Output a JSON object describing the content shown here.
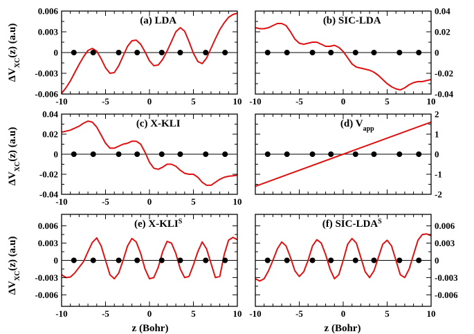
{
  "colors": {
    "curve": "#e01010",
    "axis": "#000000",
    "atoms": "#000000"
  },
  "x_axis_label": "z (Bohr)",
  "y_axis_label": "ΔV",
  "y_axis_sub": "XC",
  "y_axis_suffix": "(z) (a.u)",
  "chart_data": [
    {
      "type": "line",
      "title": "(a) LDA",
      "title_sup": "",
      "title_sub": "",
      "xlabel": "",
      "ylabel": "ΔV_XC(z) (a.u)",
      "xlim": [
        -10,
        10
      ],
      "ylim": [
        -0.006,
        0.006
      ],
      "yticks": [
        -0.006,
        -0.003,
        0,
        0.003,
        0.006
      ],
      "ytick_labels": [
        "-0.006",
        "-0.003",
        "0",
        "0.003",
        "0.006"
      ],
      "y_axis_side": "left",
      "xticks": [
        -10,
        -5,
        0,
        5,
        10
      ],
      "xtick_labels": [
        "-10",
        "-5",
        "0",
        "5",
        "10"
      ],
      "show_xtick_labels": true,
      "atoms_x": [
        -8.6,
        -6.4,
        -3.5,
        -1.4,
        1.4,
        3.5,
        6.4,
        8.6
      ],
      "x": [
        -10,
        -9.5,
        -9,
        -8.5,
        -8,
        -7.5,
        -7,
        -6.5,
        -6,
        -5.5,
        -5,
        -4.5,
        -4,
        -3.5,
        -3,
        -2.5,
        -2,
        -1.5,
        -1,
        -0.5,
        0,
        0.5,
        1,
        1.5,
        2,
        2.5,
        3,
        3.5,
        4,
        4.5,
        5,
        5.5,
        6,
        6.5,
        7,
        7.5,
        8,
        8.5,
        9,
        9.5,
        10
      ],
      "y": [
        -0.0059,
        -0.0051,
        -0.0041,
        -0.0029,
        -0.0017,
        -0.0006,
        0.0003,
        0.0006,
        0.0002,
        -0.0009,
        -0.0022,
        -0.003,
        -0.0029,
        -0.0019,
        -0.0005,
        0.0009,
        0.0017,
        0.0018,
        0.0012,
        0.0001,
        -0.0012,
        -0.0019,
        -0.0018,
        -0.001,
        0.0002,
        0.0016,
        0.003,
        0.0036,
        0.0031,
        0.0016,
        -0.0001,
        -0.0013,
        -0.0016,
        -0.0008,
        0.0006,
        0.002,
        0.0033,
        0.0043,
        0.0051,
        0.0055,
        0.0057
      ]
    },
    {
      "type": "line",
      "title": "(b) SIC-LDA",
      "title_sup": "",
      "title_sub": "",
      "xlabel": "",
      "ylabel": "",
      "xlim": [
        -10,
        10
      ],
      "ylim": [
        -0.04,
        0.04
      ],
      "yticks": [
        -0.04,
        -0.02,
        0,
        0.02,
        0.04
      ],
      "ytick_labels": [
        "-0.04",
        "-0.02",
        "0",
        "0.02",
        "0.04"
      ],
      "y_axis_side": "right",
      "xticks": [
        -10,
        -5,
        0,
        5,
        10
      ],
      "xtick_labels": [
        "-10",
        "-5",
        "0",
        "5",
        "10"
      ],
      "show_xtick_labels": true,
      "atoms_x": [
        -8.6,
        -6.4,
        -3.5,
        -1.4,
        1.4,
        3.5,
        6.4,
        8.6
      ],
      "x": [
        -10,
        -9.5,
        -9,
        -8.5,
        -8,
        -7.5,
        -7,
        -6.5,
        -6,
        -5.5,
        -5,
        -4.5,
        -4,
        -3.5,
        -3,
        -2.5,
        -2,
        -1.5,
        -1,
        -0.5,
        0,
        0.5,
        1,
        1.5,
        2,
        2.5,
        3,
        3.5,
        4,
        4.5,
        5,
        5.5,
        6,
        6.5,
        7,
        7.5,
        8,
        8.5,
        9,
        9.5,
        10
      ],
      "y": [
        0.024,
        0.023,
        0.023,
        0.024,
        0.026,
        0.028,
        0.028,
        0.026,
        0.02,
        0.013,
        0.009,
        0.008,
        0.009,
        0.01,
        0.01,
        0.008,
        0.006,
        0.006,
        0.007,
        0.005,
        0.001,
        -0.005,
        -0.011,
        -0.014,
        -0.015,
        -0.016,
        -0.017,
        -0.019,
        -0.022,
        -0.026,
        -0.03,
        -0.033,
        -0.035,
        -0.036,
        -0.034,
        -0.031,
        -0.029,
        -0.028,
        -0.028,
        -0.027,
        -0.026
      ]
    },
    {
      "type": "line",
      "title": "(c) X-KLI",
      "title_sup": "",
      "title_sub": "",
      "xlabel": "",
      "ylabel": "ΔV_XC(z) (a.u)",
      "xlim": [
        -10,
        10
      ],
      "ylim": [
        -0.04,
        0.04
      ],
      "yticks": [
        -0.04,
        -0.02,
        0,
        0.02,
        0.04
      ],
      "ytick_labels": [
        "-0.04",
        "-0.02",
        "0",
        "0.02",
        "0.04"
      ],
      "y_axis_side": "left",
      "xticks": [
        -10,
        -5,
        0,
        5,
        10
      ],
      "xtick_labels": [
        "-10",
        "-5",
        "0",
        "5",
        "10"
      ],
      "show_xtick_labels": true,
      "atoms_x": [
        -8.6,
        -6.4,
        -3.5,
        -1.4,
        1.4,
        3.5,
        6.4,
        8.6
      ],
      "x": [
        -10,
        -9.5,
        -9,
        -8.5,
        -8,
        -7.5,
        -7,
        -6.5,
        -6,
        -5.5,
        -5,
        -4.5,
        -4,
        -3.5,
        -3,
        -2.5,
        -2,
        -1.5,
        -1,
        -0.5,
        0,
        0.5,
        1,
        1.5,
        2,
        2.5,
        3,
        3.5,
        4,
        4.5,
        5,
        5.5,
        6,
        6.5,
        7,
        7.5,
        8,
        8.5,
        9,
        9.5,
        10
      ],
      "y": [
        0.022,
        0.023,
        0.024,
        0.026,
        0.028,
        0.031,
        0.033,
        0.032,
        0.027,
        0.019,
        0.011,
        0.006,
        0.006,
        0.008,
        0.01,
        0.011,
        0.013,
        0.013,
        0.01,
        0.002,
        -0.008,
        -0.014,
        -0.015,
        -0.013,
        -0.01,
        -0.01,
        -0.012,
        -0.016,
        -0.019,
        -0.02,
        -0.02,
        -0.023,
        -0.028,
        -0.031,
        -0.031,
        -0.028,
        -0.025,
        -0.023,
        -0.022,
        -0.0215,
        -0.021
      ]
    },
    {
      "type": "line",
      "title": "(d) V",
      "title_sup": "",
      "title_sub": "app",
      "xlabel": "",
      "ylabel": "",
      "xlim": [
        -10,
        10
      ],
      "ylim": [
        -2,
        2
      ],
      "yticks": [
        -2,
        -1,
        0,
        1,
        2
      ],
      "ytick_labels": [
        "-2",
        "-1",
        "0",
        "1",
        "2"
      ],
      "y_axis_side": "right",
      "xticks": [
        -10,
        -5,
        0,
        5,
        10
      ],
      "xtick_labels": [
        "-10",
        "-5",
        "0",
        "5",
        "10"
      ],
      "show_xtick_labels": false,
      "atoms_x": [
        -8.6,
        -6.4,
        -3.5,
        -1.4,
        1.4,
        3.5,
        6.4,
        8.6
      ],
      "x": [
        -10,
        10
      ],
      "y": [
        -1.6,
        1.6
      ]
    },
    {
      "type": "line",
      "title": "(e) X-KLI",
      "title_sup": "S",
      "title_sub": "",
      "xlabel": "z (Bohr)",
      "ylabel": "ΔV_XC(z) (a.u)",
      "xlim": [
        -10,
        10
      ],
      "ylim": [
        -0.008,
        0.008
      ],
      "yticks": [
        -0.006,
        -0.003,
        0,
        0.003,
        0.006
      ],
      "ytick_labels": [
        "-0.006",
        "-0.003",
        "0",
        "0.003",
        "0.006"
      ],
      "y_axis_side": "left",
      "xticks": [
        -10,
        -5,
        0,
        5,
        10
      ],
      "xtick_labels": [
        "-10",
        "-5",
        "0",
        "5",
        "10"
      ],
      "show_xtick_labels": true,
      "atoms_x": [
        -8.6,
        -6.4,
        -3.5,
        -1.4,
        1.4,
        3.5,
        6.4,
        8.6
      ],
      "x": [
        -10,
        -9.5,
        -9,
        -8.5,
        -8,
        -7.5,
        -7,
        -6.5,
        -6,
        -5.5,
        -5,
        -4.5,
        -4,
        -3.5,
        -3,
        -2.5,
        -2,
        -1.5,
        -1,
        -0.5,
        0,
        0.5,
        1,
        1.5,
        2,
        2.5,
        3,
        3.5,
        4,
        4.5,
        5,
        5.5,
        6,
        6.5,
        7,
        7.5,
        8,
        8.5,
        9,
        9.5,
        10
      ],
      "y": [
        -0.0025,
        -0.003,
        -0.0029,
        -0.0022,
        -0.0012,
        -0.0002,
        0.0015,
        0.0031,
        0.0039,
        0.0025,
        0.0,
        -0.0025,
        -0.0032,
        -0.0022,
        0.0,
        0.0025,
        0.0038,
        0.0032,
        0.0012,
        -0.0015,
        -0.0032,
        -0.003,
        -0.0012,
        0.0015,
        0.0033,
        0.003,
        0.0012,
        -0.0015,
        -0.003,
        -0.0028,
        -0.0008,
        0.0015,
        0.0032,
        0.002,
        -0.0005,
        -0.003,
        -0.0028,
        0.001,
        0.0035,
        0.004,
        0.0036
      ]
    },
    {
      "type": "line",
      "title": "(f) SIC-LDA",
      "title_sup": "S",
      "title_sub": "",
      "xlabel": "z (Bohr)",
      "ylabel": "",
      "xlim": [
        -10,
        10
      ],
      "ylim": [
        -0.008,
        0.008
      ],
      "yticks": [
        -0.006,
        -0.003,
        0,
        0.003,
        0.006
      ],
      "ytick_labels": [
        "-0.006",
        "-0.003",
        "0",
        "0.003",
        "0.006"
      ],
      "y_axis_side": "right",
      "xticks": [
        -10,
        -5,
        0,
        5,
        10
      ],
      "xtick_labels": [
        "-10",
        "-5",
        "0",
        "5",
        "10"
      ],
      "show_xtick_labels": true,
      "atoms_x": [
        -8.6,
        -6.4,
        -3.5,
        -1.4,
        1.4,
        3.5,
        6.4,
        8.6
      ],
      "x": [
        -10,
        -9.5,
        -9,
        -8.5,
        -8,
        -7.5,
        -7,
        -6.5,
        -6,
        -5.5,
        -5,
        -4.5,
        -4,
        -3.5,
        -3,
        -2.5,
        -2,
        -1.5,
        -1,
        -0.5,
        0,
        0.5,
        1,
        1.5,
        2,
        2.5,
        3,
        3.5,
        4,
        4.5,
        5,
        5.5,
        6,
        6.5,
        7,
        7.5,
        8,
        8.5,
        9,
        9.5,
        10
      ],
      "y": [
        -0.0032,
        -0.0036,
        -0.0032,
        -0.0018,
        0.0,
        0.002,
        0.0032,
        0.0025,
        0.0005,
        -0.0018,
        -0.0028,
        -0.002,
        0.0,
        0.0025,
        0.0036,
        0.003,
        0.001,
        -0.0015,
        -0.0032,
        -0.0025,
        0.0,
        0.0028,
        0.0038,
        0.003,
        0.0005,
        -0.002,
        -0.003,
        -0.0018,
        0.0005,
        0.0028,
        0.0035,
        0.0025,
        0.0,
        -0.0025,
        -0.003,
        -0.0015,
        0.001,
        0.0035,
        0.0045,
        0.0046,
        0.0043
      ]
    }
  ]
}
